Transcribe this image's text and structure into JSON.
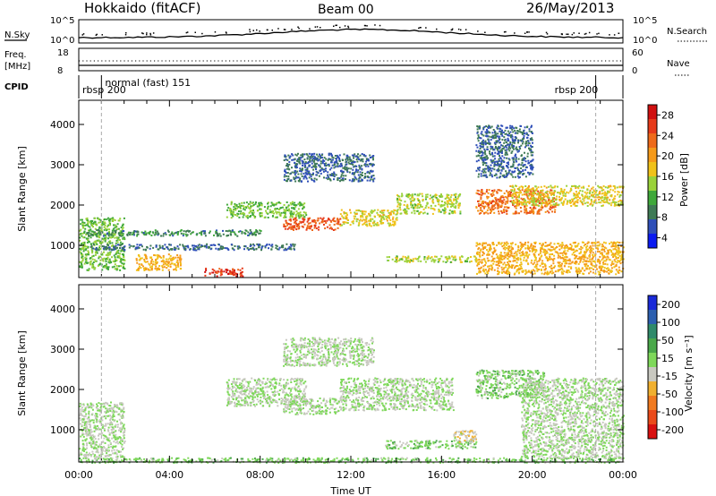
{
  "header": {
    "station": "Hokkaido (fitACF)",
    "beam": "Beam 00",
    "date": "26/May/2013"
  },
  "panels_top": {
    "nsky_label": "N.Sky",
    "nsky_ticks": [
      "10^5",
      "10^0"
    ],
    "nsearch_label": "N.Search",
    "nsearch_ticks": [
      "10^5",
      "10^0"
    ],
    "freq_label_1": "Freq.",
    "freq_label_2": "[MHz]",
    "freq_ticks": [
      "18",
      "8"
    ],
    "nave_label": "Nave",
    "nave_ticks": [
      "60",
      "0"
    ],
    "cpid_label": "CPID",
    "cpid_segments": [
      {
        "text": "rbsp 200",
        "start_h": 0.0,
        "end_h": 1.0
      },
      {
        "text": "normal (fast) 151",
        "start_h": 1.0,
        "end_h": 22.8
      },
      {
        "text": "rbsp 200",
        "start_h": 22.8,
        "end_h": 24.0
      }
    ]
  },
  "colorbars": {
    "power": {
      "label": "Power [dB]",
      "ticks": [
        "4",
        "8",
        "12",
        "16",
        "20",
        "24",
        "28"
      ],
      "colors": [
        "#0a1bf0",
        "#2f4fb8",
        "#3f7a55",
        "#3fa83a",
        "#9ad23a",
        "#f0c21a",
        "#f59a1a",
        "#ee6a1a",
        "#e63a1a",
        "#d01010"
      ]
    },
    "velocity": {
      "label": "Velocity [m s⁻¹]",
      "ticks": [
        "200",
        "100",
        "50",
        "15",
        "-15",
        "-50",
        "-100",
        "-200"
      ],
      "colors": [
        "#1a2ad8",
        "#2c5fb0",
        "#2f8a6a",
        "#4aa84a",
        "#7ed85a",
        "#c8c8c0",
        "#f0b030",
        "#f07a20",
        "#ea4a1a",
        "#d81010"
      ]
    }
  },
  "chart_data": [
    {
      "type": "heatmap",
      "title": "Power",
      "ylabel": "Slant Range [km]",
      "xlabel": "",
      "ylim": [
        200,
        4600
      ],
      "yticks": [
        "1000",
        "2000",
        "3000",
        "4000"
      ],
      "colorbar_label": "Power [dB]",
      "colorbar_range": [
        0,
        30
      ],
      "echo_bands": [
        {
          "t0": 0.0,
          "t1": 2.0,
          "r0": 400,
          "r1": 1700,
          "power": 12
        },
        {
          "t0": 0.5,
          "t1": 9.5,
          "r0": 900,
          "r1": 1050,
          "power": 6
        },
        {
          "t0": 0.3,
          "t1": 8.0,
          "r0": 1250,
          "r1": 1400,
          "power": 8
        },
        {
          "t0": 6.5,
          "t1": 10.0,
          "r0": 1700,
          "r1": 2100,
          "power": 12
        },
        {
          "t0": 9.0,
          "t1": 11.5,
          "r0": 1400,
          "r1": 1700,
          "power": 24
        },
        {
          "t0": 11.5,
          "t1": 14.0,
          "r0": 1500,
          "r1": 1900,
          "power": 16
        },
        {
          "t0": 14.0,
          "t1": 16.8,
          "r0": 1800,
          "r1": 2300,
          "power": 14
        },
        {
          "t0": 9.0,
          "t1": 13.0,
          "r0": 2600,
          "r1": 3300,
          "power": 6
        },
        {
          "t0": 5.5,
          "t1": 7.2,
          "r0": 250,
          "r1": 450,
          "power": 26
        },
        {
          "t0": 2.5,
          "t1": 4.5,
          "r0": 400,
          "r1": 800,
          "power": 18
        },
        {
          "t0": 13.5,
          "t1": 17.5,
          "r0": 600,
          "r1": 750,
          "power": 14
        },
        {
          "t0": 17.5,
          "t1": 24.0,
          "r0": 300,
          "r1": 1100,
          "power": 18
        },
        {
          "t0": 17.5,
          "t1": 21.0,
          "r0": 1800,
          "r1": 2400,
          "power": 22
        },
        {
          "t0": 19.0,
          "t1": 24.0,
          "r0": 2000,
          "r1": 2500,
          "power": 16
        },
        {
          "t0": 17.5,
          "t1": 20.0,
          "r0": 2700,
          "r1": 4000,
          "power": 6
        }
      ]
    },
    {
      "type": "heatmap",
      "title": "Velocity",
      "ylabel": "Slant Range [km]",
      "xlabel": "Time UT",
      "ylim": [
        200,
        4600
      ],
      "yticks": [
        "1000",
        "2000",
        "3000",
        "4000"
      ],
      "xticks": [
        "00:00",
        "04:00",
        "08:00",
        "12:00",
        "16:00",
        "20:00",
        "00:00"
      ],
      "colorbar_label": "Velocity [m s⁻¹]",
      "colorbar_range": [
        -250,
        250
      ],
      "echo_bands": [
        {
          "t0": 0.0,
          "t1": 2.0,
          "r0": 300,
          "r1": 1700,
          "velocity": 0
        },
        {
          "t0": 0.0,
          "t1": 24.0,
          "r0": 200,
          "r1": 320,
          "velocity": 30
        },
        {
          "t0": 6.5,
          "t1": 10.0,
          "r0": 1600,
          "r1": 2300,
          "velocity": 0
        },
        {
          "t0": 9.0,
          "t1": 11.5,
          "r0": 1400,
          "r1": 1800,
          "velocity": 0
        },
        {
          "t0": 11.5,
          "t1": 16.5,
          "r0": 1500,
          "r1": 2300,
          "velocity": 0
        },
        {
          "t0": 13.5,
          "t1": 17.5,
          "r0": 550,
          "r1": 750,
          "velocity": 25
        },
        {
          "t0": 16.5,
          "t1": 17.5,
          "r0": 700,
          "r1": 1000,
          "velocity": -40
        },
        {
          "t0": 17.5,
          "t1": 20.5,
          "r0": 1800,
          "r1": 2500,
          "velocity": 25
        },
        {
          "t0": 19.5,
          "t1": 24.0,
          "r0": 300,
          "r1": 2300,
          "velocity": 0
        },
        {
          "t0": 9.0,
          "t1": 13.0,
          "r0": 2600,
          "r1": 3300,
          "velocity": 0
        }
      ]
    }
  ]
}
